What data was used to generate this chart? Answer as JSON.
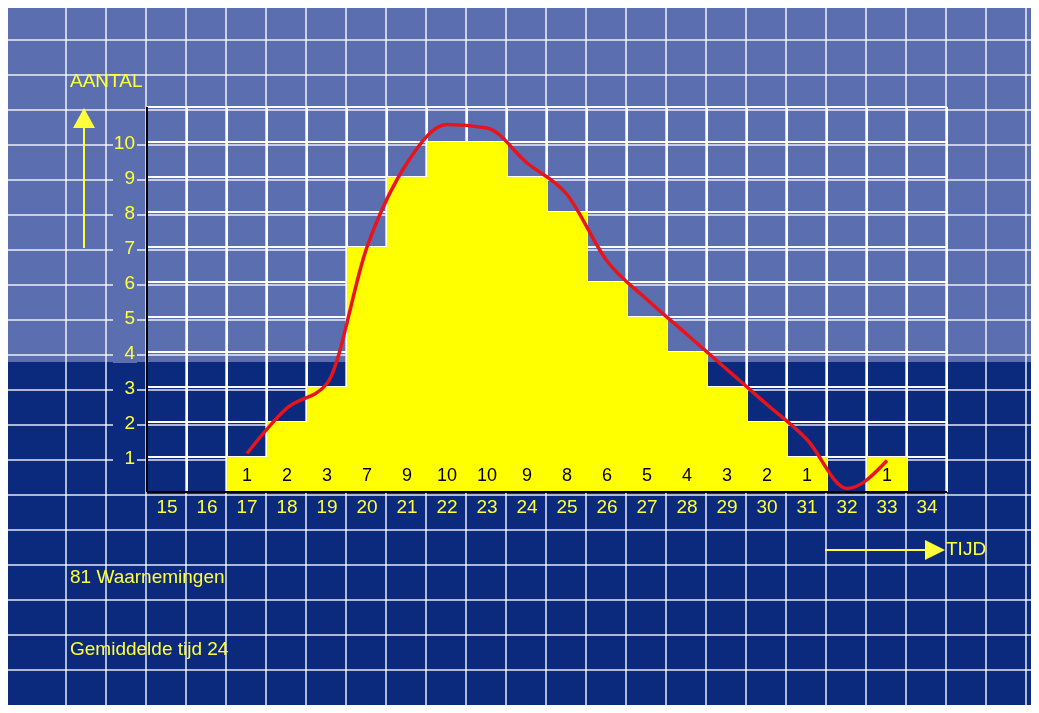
{
  "chart_data": {
    "type": "bar",
    "xlabel": "TIJD",
    "ylabel": "AANTAL",
    "categories": [
      "15",
      "16",
      "17",
      "18",
      "19",
      "20",
      "21",
      "22",
      "23",
      "24",
      "25",
      "26",
      "27",
      "28",
      "29",
      "30",
      "31",
      "32",
      "33",
      "34"
    ],
    "series": [
      {
        "color": "#ffff00",
        "values": [
          0,
          0,
          1,
          2,
          3,
          7,
          9,
          10,
          10,
          9,
          8,
          6,
          5,
          4,
          3,
          2,
          1,
          0,
          1,
          0
        ],
        "value_labels": [
          null,
          null,
          "1",
          "2",
          "3",
          "7",
          "9",
          "10",
          "10",
          "9",
          "8",
          "6",
          "5",
          "4",
          "3",
          "2",
          "1",
          null,
          "1",
          null
        ]
      },
      {
        "type": "line",
        "color": "#e8141c",
        "values": [
          null,
          null,
          1.1,
          2.4,
          3.1,
          7.0,
          9.4,
          10.5,
          10.4,
          9.4,
          8.5,
          6.6,
          5.5,
          4.5,
          3.5,
          2.5,
          1.5,
          0.1,
          0.9,
          null
        ]
      }
    ],
    "ylim": [
      0,
      11
    ],
    "yticks": [
      1,
      2,
      3,
      4,
      5,
      6,
      7,
      8,
      9,
      10
    ],
    "grid": true,
    "legend": false,
    "annotations": [
      "81 Waarnemingen",
      "Gemiddelde tijd 24"
    ]
  }
}
